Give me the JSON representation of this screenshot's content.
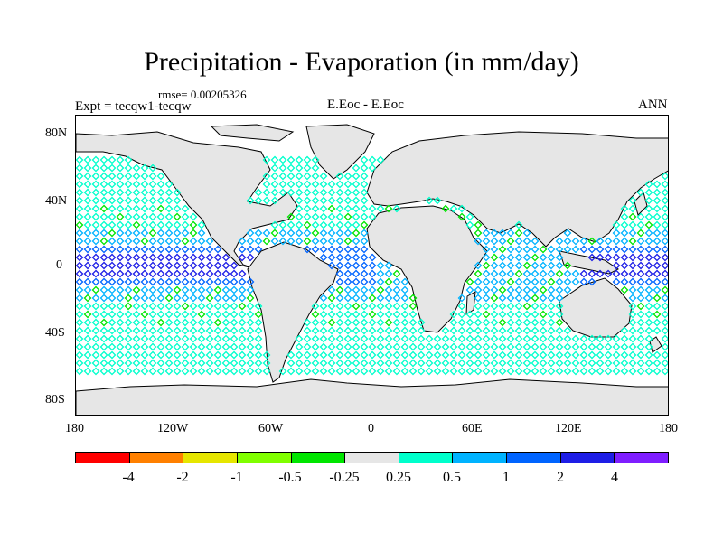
{
  "title": "Precipitation - Evaporation (in mm/day)",
  "rmse": "rmse= 0.00205326",
  "expt": "Expt = tecqw1-tecqw",
  "center_label": "E.Eoc - E.Eoc",
  "season": "ANN",
  "y_ticks": [
    "80N",
    "40N",
    "0",
    "40S",
    "80S"
  ],
  "x_ticks": [
    "180",
    "120W",
    "60W",
    "0",
    "60E",
    "120E",
    "180"
  ],
  "colorbar": {
    "colors": [
      "#ff0000",
      "#ff8000",
      "#e6e600",
      "#80ff00",
      "#00e600",
      "#e6e6e6",
      "#00ffcc",
      "#00b3ff",
      "#0064ff",
      "#1e1ee6",
      "#7f1eff"
    ],
    "labels": [
      "-4",
      "-2",
      "-1",
      "-0.5",
      "-0.25",
      "0.25",
      "0.5",
      "1",
      "2",
      "4"
    ]
  },
  "map_colors": {
    "land": "#e6e6e6",
    "coast": "#000000"
  }
}
